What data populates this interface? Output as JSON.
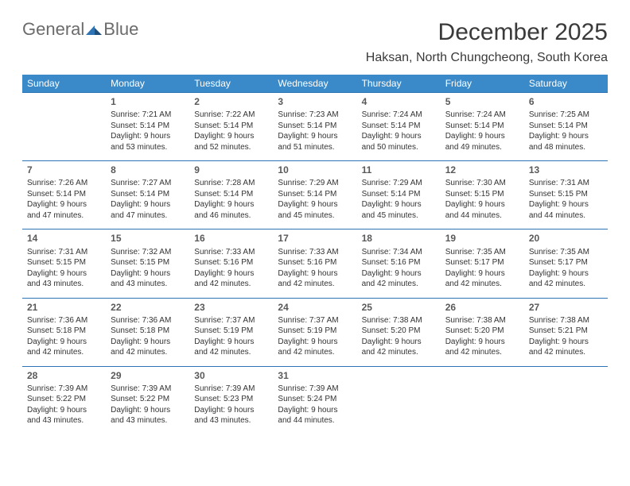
{
  "brand": {
    "part1": "General",
    "part2": "Blue"
  },
  "title": "December 2025",
  "location": "Haksan, North Chungcheong, South Korea",
  "colors": {
    "header_bg": "#3a8ac9",
    "header_text": "#ffffff",
    "row_border": "#2e74b5",
    "daynum": "#595959",
    "body_text": "#333333",
    "title_text": "#3a3a3a",
    "brand_gray": "#6b6b6b",
    "brand_blue": "#2e74b5",
    "background": "#ffffff"
  },
  "layout": {
    "columns": 7,
    "rows": 5,
    "first_weekday_offset": 1
  },
  "weekdays": [
    "Sunday",
    "Monday",
    "Tuesday",
    "Wednesday",
    "Thursday",
    "Friday",
    "Saturday"
  ],
  "labels": {
    "sunrise": "Sunrise:",
    "sunset": "Sunset:",
    "daylight": "Daylight:"
  },
  "days": [
    {
      "n": "1",
      "sunrise": "7:21 AM",
      "sunset": "5:14 PM",
      "daylight": "9 hours and 53 minutes."
    },
    {
      "n": "2",
      "sunrise": "7:22 AM",
      "sunset": "5:14 PM",
      "daylight": "9 hours and 52 minutes."
    },
    {
      "n": "3",
      "sunrise": "7:23 AM",
      "sunset": "5:14 PM",
      "daylight": "9 hours and 51 minutes."
    },
    {
      "n": "4",
      "sunrise": "7:24 AM",
      "sunset": "5:14 PM",
      "daylight": "9 hours and 50 minutes."
    },
    {
      "n": "5",
      "sunrise": "7:24 AM",
      "sunset": "5:14 PM",
      "daylight": "9 hours and 49 minutes."
    },
    {
      "n": "6",
      "sunrise": "7:25 AM",
      "sunset": "5:14 PM",
      "daylight": "9 hours and 48 minutes."
    },
    {
      "n": "7",
      "sunrise": "7:26 AM",
      "sunset": "5:14 PM",
      "daylight": "9 hours and 47 minutes."
    },
    {
      "n": "8",
      "sunrise": "7:27 AM",
      "sunset": "5:14 PM",
      "daylight": "9 hours and 47 minutes."
    },
    {
      "n": "9",
      "sunrise": "7:28 AM",
      "sunset": "5:14 PM",
      "daylight": "9 hours and 46 minutes."
    },
    {
      "n": "10",
      "sunrise": "7:29 AM",
      "sunset": "5:14 PM",
      "daylight": "9 hours and 45 minutes."
    },
    {
      "n": "11",
      "sunrise": "7:29 AM",
      "sunset": "5:14 PM",
      "daylight": "9 hours and 45 minutes."
    },
    {
      "n": "12",
      "sunrise": "7:30 AM",
      "sunset": "5:15 PM",
      "daylight": "9 hours and 44 minutes."
    },
    {
      "n": "13",
      "sunrise": "7:31 AM",
      "sunset": "5:15 PM",
      "daylight": "9 hours and 44 minutes."
    },
    {
      "n": "14",
      "sunrise": "7:31 AM",
      "sunset": "5:15 PM",
      "daylight": "9 hours and 43 minutes."
    },
    {
      "n": "15",
      "sunrise": "7:32 AM",
      "sunset": "5:15 PM",
      "daylight": "9 hours and 43 minutes."
    },
    {
      "n": "16",
      "sunrise": "7:33 AM",
      "sunset": "5:16 PM",
      "daylight": "9 hours and 42 minutes."
    },
    {
      "n": "17",
      "sunrise": "7:33 AM",
      "sunset": "5:16 PM",
      "daylight": "9 hours and 42 minutes."
    },
    {
      "n": "18",
      "sunrise": "7:34 AM",
      "sunset": "5:16 PM",
      "daylight": "9 hours and 42 minutes."
    },
    {
      "n": "19",
      "sunrise": "7:35 AM",
      "sunset": "5:17 PM",
      "daylight": "9 hours and 42 minutes."
    },
    {
      "n": "20",
      "sunrise": "7:35 AM",
      "sunset": "5:17 PM",
      "daylight": "9 hours and 42 minutes."
    },
    {
      "n": "21",
      "sunrise": "7:36 AM",
      "sunset": "5:18 PM",
      "daylight": "9 hours and 42 minutes."
    },
    {
      "n": "22",
      "sunrise": "7:36 AM",
      "sunset": "5:18 PM",
      "daylight": "9 hours and 42 minutes."
    },
    {
      "n": "23",
      "sunrise": "7:37 AM",
      "sunset": "5:19 PM",
      "daylight": "9 hours and 42 minutes."
    },
    {
      "n": "24",
      "sunrise": "7:37 AM",
      "sunset": "5:19 PM",
      "daylight": "9 hours and 42 minutes."
    },
    {
      "n": "25",
      "sunrise": "7:38 AM",
      "sunset": "5:20 PM",
      "daylight": "9 hours and 42 minutes."
    },
    {
      "n": "26",
      "sunrise": "7:38 AM",
      "sunset": "5:20 PM",
      "daylight": "9 hours and 42 minutes."
    },
    {
      "n": "27",
      "sunrise": "7:38 AM",
      "sunset": "5:21 PM",
      "daylight": "9 hours and 42 minutes."
    },
    {
      "n": "28",
      "sunrise": "7:39 AM",
      "sunset": "5:22 PM",
      "daylight": "9 hours and 43 minutes."
    },
    {
      "n": "29",
      "sunrise": "7:39 AM",
      "sunset": "5:22 PM",
      "daylight": "9 hours and 43 minutes."
    },
    {
      "n": "30",
      "sunrise": "7:39 AM",
      "sunset": "5:23 PM",
      "daylight": "9 hours and 43 minutes."
    },
    {
      "n": "31",
      "sunrise": "7:39 AM",
      "sunset": "5:24 PM",
      "daylight": "9 hours and 44 minutes."
    }
  ]
}
